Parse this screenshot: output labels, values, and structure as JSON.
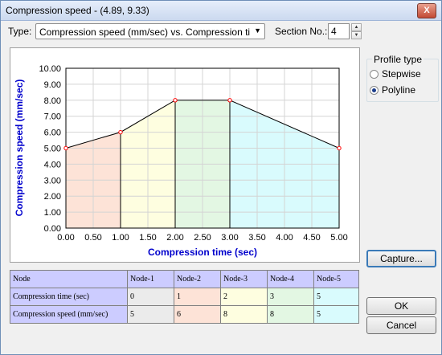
{
  "window": {
    "title": "Compression speed - (4.89, 9.33)",
    "close_glyph": "X"
  },
  "toolbar": {
    "type_label": "Type:",
    "type_value": "Compression speed (mm/sec) vs. Compression time (sec)",
    "section_label": "Section No.:",
    "section_value": "4"
  },
  "profile": {
    "legend": "Profile type",
    "options": [
      {
        "label": "Stepwise",
        "checked": false
      },
      {
        "label": "Polyline",
        "checked": true
      }
    ]
  },
  "buttons": {
    "capture": "Capture...",
    "ok": "OK",
    "cancel": "Cancel"
  },
  "table": {
    "headers": [
      "Node",
      "Node-1",
      "Node-2",
      "Node-3",
      "Node-4",
      "Node-5"
    ],
    "rows": [
      {
        "label": "Compression time (sec)",
        "values": [
          "0",
          "1",
          "2",
          "3",
          "5"
        ]
      },
      {
        "label": "Compression speed (mm/sec)",
        "values": [
          "5",
          "6",
          "8",
          "8",
          "5"
        ]
      }
    ],
    "cell_colors": [
      "#ebebeb",
      "#fde3d7",
      "#fefee0",
      "#e3f7e3",
      "#d9fbfd"
    ]
  },
  "chart_data": {
    "type": "area",
    "xlabel": "Compression time (sec)",
    "ylabel": "Compression speed (mm/sec)",
    "xlim": [
      0,
      5
    ],
    "ylim": [
      0,
      10
    ],
    "xticks": [
      "0.00",
      "0.50",
      "1.00",
      "1.50",
      "2.00",
      "2.50",
      "3.00",
      "3.50",
      "4.00",
      "4.50",
      "5.00"
    ],
    "yticks": [
      "0.00",
      "1.00",
      "2.00",
      "3.00",
      "4.00",
      "5.00",
      "6.00",
      "7.00",
      "8.00",
      "9.00",
      "10.00"
    ],
    "x": [
      0,
      1,
      2,
      3,
      5
    ],
    "y": [
      5,
      6,
      8,
      8,
      5
    ],
    "segment_colors": [
      "#fde3d7",
      "#fefee0",
      "#e3f7e3",
      "#d9fbfd"
    ],
    "line_color": "#000000",
    "marker_color": "#ff0000",
    "label_color": "#0000cc",
    "grid": true
  }
}
